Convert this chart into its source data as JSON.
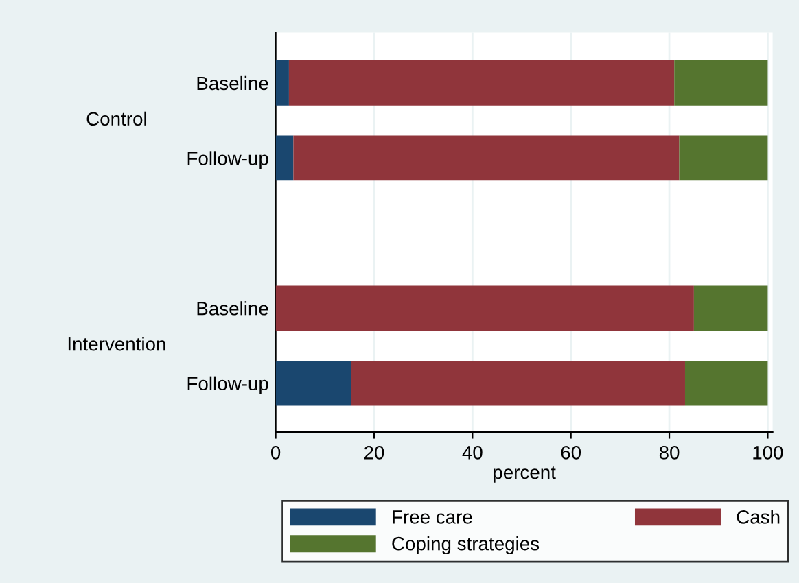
{
  "chart_data": {
    "type": "bar",
    "orientation": "horizontal",
    "stacked": true,
    "xlabel": "percent",
    "categories": [
      "Baseline",
      "Follow-up",
      null,
      "Baseline",
      "Follow-up"
    ],
    "series": [
      {
        "name": "Free care",
        "color": "#1a476f",
        "values": [
          2.7,
          3.6,
          null,
          0,
          15.4
        ]
      },
      {
        "name": "Cash",
        "color": "#90353b",
        "values": [
          78.3,
          78.4,
          null,
          85,
          67.8
        ]
      },
      {
        "name": "Coping strategies",
        "color": "#55752f",
        "values": [
          19.0,
          18.0,
          null,
          15,
          16.8
        ]
      }
    ],
    "annotations": [
      "Control",
      "Intervention"
    ],
    "xlim": [
      0,
      101
    ],
    "xticks": [
      0,
      20,
      40,
      60,
      80,
      100
    ],
    "grid": "x",
    "legend": "bottom"
  }
}
